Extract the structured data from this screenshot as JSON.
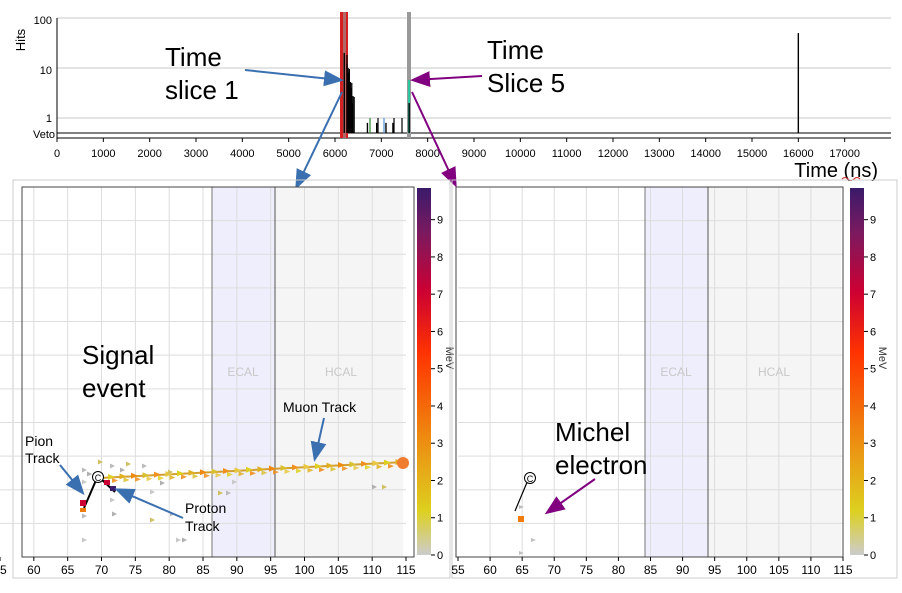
{
  "top_plot": {
    "y_label": "Hits",
    "x_label": "Time (ns)",
    "y_ticks": [
      "100",
      "10",
      "1"
    ],
    "veto_label": "Veto",
    "x_ticks": [
      "0",
      "1000",
      "2000",
      "3000",
      "4000",
      "5000",
      "6000",
      "7000",
      "8000",
      "9000",
      "10000",
      "11000",
      "12000",
      "13000",
      "14000",
      "15000",
      "16000",
      "17000"
    ]
  },
  "annotations": {
    "time_slice_1": [
      "Time",
      "slice 1"
    ],
    "time_slice_5": [
      "Time",
      "Slice 5"
    ],
    "signal_event": [
      "Signal",
      "event"
    ],
    "michel_electron": [
      "Michel",
      "electron"
    ],
    "muon_track": "Muon Track",
    "pion_track": [
      "Pion",
      "Track"
    ],
    "proton_track": [
      "Proton",
      "Track"
    ]
  },
  "event_panels": {
    "ecal_label": "ECAL",
    "hcal_label": "HCAL",
    "x_ticks": [
      "55",
      "60",
      "65",
      "70",
      "75",
      "80",
      "85",
      "90",
      "95",
      "100",
      "105",
      "110",
      "115"
    ],
    "colorbar_ticks": [
      "0",
      "1",
      "2",
      "3",
      "4",
      "5",
      "6",
      "7",
      "8",
      "9"
    ],
    "colorbar_label": "MeV",
    "vertex_marker": "C",
    "colors": {
      "colormap": [
        "#cccccc",
        "#ddd020",
        "#ee8a10",
        "#ff3300",
        "#cc0033",
        "#7a1a60",
        "#3a1a6a"
      ],
      "ecal_fill": "#eeeefc",
      "hcal_fill": "#f5f5f5",
      "arrow_blue": "#3a6fb0",
      "arrow_purple": "#800080"
    }
  },
  "chart_data": [
    {
      "type": "bar",
      "y_scale": "log",
      "ylabel": "Hits",
      "xlabel": "Time (ns)",
      "xlim": [
        0,
        18000
      ],
      "ylim": [
        0.5,
        100
      ],
      "time_slice_bands_ns": [
        [
          6100,
          6300
        ],
        [
          7550,
          7650
        ]
      ],
      "spikes": [
        {
          "x": 6200,
          "y": 20
        },
        {
          "x": 6260,
          "y": 12
        },
        {
          "x": 6300,
          "y": 8
        },
        {
          "x": 6340,
          "y": 4
        },
        {
          "x": 6380,
          "y": 2
        },
        {
          "x": 6700,
          "y": 0.8
        },
        {
          "x": 6900,
          "y": 0.8
        },
        {
          "x": 7100,
          "y": 0.8
        },
        {
          "x": 7250,
          "y": 0.8
        },
        {
          "x": 7600,
          "y": 2
        },
        {
          "x": 16000,
          "y": 50
        }
      ]
    },
    {
      "type": "scatter",
      "panel": "Signal event",
      "x_tick_labels": [
        "55",
        "60",
        "65",
        "70",
        "75",
        "80",
        "85",
        "90",
        "95",
        "100",
        "105",
        "110",
        "115"
      ],
      "colorbar_label": "MeV",
      "colorbar_range": [
        0,
        9
      ],
      "ecal_x_range": [
        85,
        95
      ],
      "hcal_x_range": [
        95,
        115
      ],
      "tracks": [
        {
          "name": "Muon Track",
          "points": [
            [
              68,
              1
            ],
            [
              80,
              2
            ],
            [
              90,
              3
            ],
            [
              100,
              3
            ],
            [
              110,
              3
            ],
            [
              115,
              4
            ]
          ]
        },
        {
          "name": "Pion Track",
          "points": [
            [
              66,
              6
            ],
            [
              65,
              8
            ],
            [
              64,
              9
            ]
          ]
        },
        {
          "name": "Proton Track",
          "points": [
            [
              67,
              5
            ],
            [
              68,
              7
            ],
            [
              69,
              8
            ]
          ]
        }
      ]
    },
    {
      "type": "scatter",
      "panel": "Michel electron",
      "x_tick_labels": [
        "55",
        "60",
        "65",
        "70",
        "75",
        "80",
        "85",
        "90",
        "95",
        "100",
        "105",
        "110",
        "115"
      ],
      "colorbar_label": "MeV",
      "colorbar_range": [
        0,
        9
      ],
      "ecal_x_range": [
        85,
        95
      ],
      "hcal_x_range": [
        95,
        115
      ],
      "hits": [
        [
          65,
          1
        ],
        [
          65,
          3
        ],
        [
          66,
          0
        ],
        [
          65,
          0
        ]
      ]
    }
  ]
}
